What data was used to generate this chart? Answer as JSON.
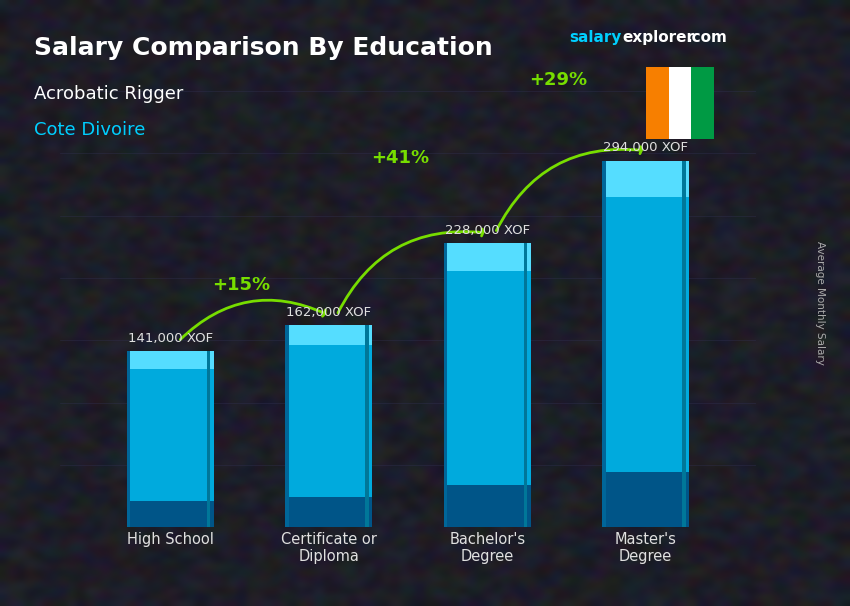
{
  "title": "Salary Comparison By Education",
  "subtitle_job": "Acrobatic Rigger",
  "subtitle_country": "Cote Divoire",
  "watermark": "salaryexplorer.com",
  "ylabel": "Average Monthly Salary",
  "categories": [
    "High School",
    "Certificate or\nDiploma",
    "Bachelor's\nDegree",
    "Master's\nDegree"
  ],
  "values": [
    141000,
    162000,
    228000,
    294000
  ],
  "value_labels": [
    "141,000 XOF",
    "162,000 XOF",
    "228,000 XOF",
    "294,000 XOF"
  ],
  "pct_labels": [
    "+15%",
    "+41%",
    "+29%"
  ],
  "bar_color_top": "#00cfff",
  "bar_color_bottom": "#0077cc",
  "bar_color_mid": "#00aaee",
  "arrow_color": "#77dd00",
  "title_color": "#ffffff",
  "subtitle_job_color": "#ffffff",
  "subtitle_country_color": "#00cfff",
  "value_label_color": "#dddddd",
  "pct_color": "#77dd00",
  "watermark_salary_color": "#00cfff",
  "watermark_explorer_color": "#ffffff",
  "bg_overlay": "rgba(0,0,0,0.45)",
  "ylim": [
    0,
    350000
  ],
  "bar_width": 0.55,
  "flag_colors": [
    "#f77f00",
    "#ffffff",
    "#009a44"
  ]
}
